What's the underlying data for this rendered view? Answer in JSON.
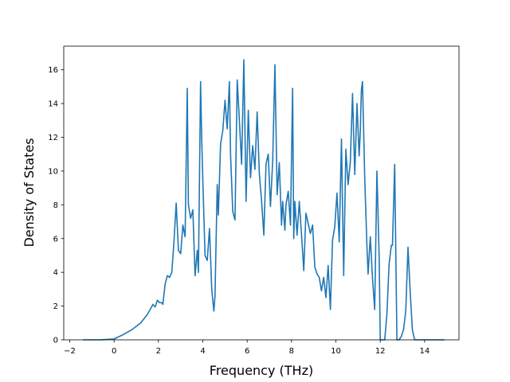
{
  "chart_data": {
    "type": "line",
    "title": "",
    "xlabel": "Frequency (THz)",
    "ylabel": "Density of States",
    "xlim": [
      -2.27,
      15.55
    ],
    "ylim": [
      0,
      17.4
    ],
    "xticks": [
      -2,
      0,
      2,
      4,
      6,
      8,
      10,
      12,
      14
    ],
    "yticks": [
      0,
      2,
      4,
      6,
      8,
      10,
      12,
      14,
      16
    ],
    "grid": false,
    "legend": "none",
    "series": [
      {
        "color": "#1f77b4",
        "x": [
          -1.4,
          -0.6,
          0.0,
          0.4,
          0.8,
          1.2,
          1.5,
          1.75,
          1.85,
          1.95,
          2.05,
          2.15,
          2.2,
          2.3,
          2.4,
          2.5,
          2.6,
          2.7,
          2.8,
          2.9,
          3.0,
          3.1,
          3.2,
          3.3,
          3.35,
          3.45,
          3.55,
          3.65,
          3.75,
          3.8,
          3.9,
          3.95,
          4.0,
          4.1,
          4.2,
          4.3,
          4.4,
          4.5,
          4.55,
          4.65,
          4.7,
          4.8,
          4.9,
          5.0,
          5.1,
          5.2,
          5.25,
          5.35,
          5.45,
          5.55,
          5.65,
          5.75,
          5.85,
          5.95,
          6.05,
          6.15,
          6.25,
          6.35,
          6.45,
          6.55,
          6.65,
          6.75,
          6.85,
          6.95,
          7.05,
          7.15,
          7.25,
          7.35,
          7.45,
          7.55,
          7.6,
          7.7,
          7.75,
          7.85,
          7.95,
          8.05,
          8.1,
          8.15,
          8.25,
          8.35,
          8.45,
          8.55,
          8.65,
          8.75,
          8.85,
          8.95,
          9.05,
          9.15,
          9.25,
          9.35,
          9.45,
          9.55,
          9.65,
          9.75,
          9.85,
          9.95,
          10.05,
          10.15,
          10.25,
          10.3,
          10.35,
          10.45,
          10.55,
          10.65,
          10.75,
          10.85,
          10.95,
          11.05,
          11.1,
          11.15,
          11.2,
          11.3,
          11.4,
          11.45,
          11.55,
          11.65,
          11.75,
          11.85,
          11.95,
          12.0,
          12.05,
          12.1,
          12.2,
          12.3,
          12.4,
          12.5,
          12.55,
          12.65,
          12.75,
          12.85,
          12.95,
          13.05,
          13.15,
          13.25,
          13.35,
          13.45,
          13.55,
          13.7,
          14.0,
          14.9
        ],
        "values": [
          0,
          0,
          0.05,
          0.3,
          0.6,
          1.0,
          1.5,
          2.1,
          1.95,
          2.35,
          2.2,
          2.2,
          2.1,
          3.3,
          3.8,
          3.7,
          4.0,
          5.8,
          8.1,
          5.3,
          5.1,
          6.8,
          6.1,
          14.9,
          8.0,
          7.2,
          7.7,
          3.8,
          5.3,
          4.0,
          15.3,
          12.0,
          9.5,
          5.0,
          4.7,
          6.6,
          3.0,
          1.7,
          2.6,
          9.2,
          7.4,
          11.6,
          12.4,
          14.2,
          12.5,
          15.3,
          11.0,
          7.6,
          7.1,
          15.4,
          13.0,
          10.4,
          16.6,
          8.2,
          13.6,
          9.6,
          11.5,
          10.1,
          13.5,
          9.8,
          8.2,
          6.2,
          10.4,
          11.0,
          7.9,
          10.6,
          16.3,
          8.6,
          10.5,
          6.8,
          8.2,
          6.5,
          8.0,
          8.8,
          6.8,
          14.9,
          6.0,
          8.2,
          6.2,
          8.2,
          6.2,
          4.1,
          7.5,
          6.9,
          6.3,
          6.8,
          4.3,
          3.9,
          3.7,
          2.9,
          3.7,
          2.5,
          4.4,
          1.8,
          5.9,
          6.7,
          8.7,
          5.8,
          11.9,
          7.8,
          3.8,
          11.3,
          9.2,
          10.5,
          14.6,
          9.8,
          14.0,
          10.9,
          12.3,
          14.8,
          15.3,
          9.6,
          5.5,
          3.9,
          6.1,
          3.7,
          1.8,
          10.0,
          4.9,
          0.0,
          0.0,
          0.0,
          0.0,
          1.5,
          4.5,
          5.6,
          5.6,
          10.4,
          0.0,
          0.0,
          0.2,
          0.6,
          1.7,
          5.5,
          2.8,
          0.6,
          0.0,
          0.0,
          0.0,
          0.0
        ]
      }
    ]
  }
}
